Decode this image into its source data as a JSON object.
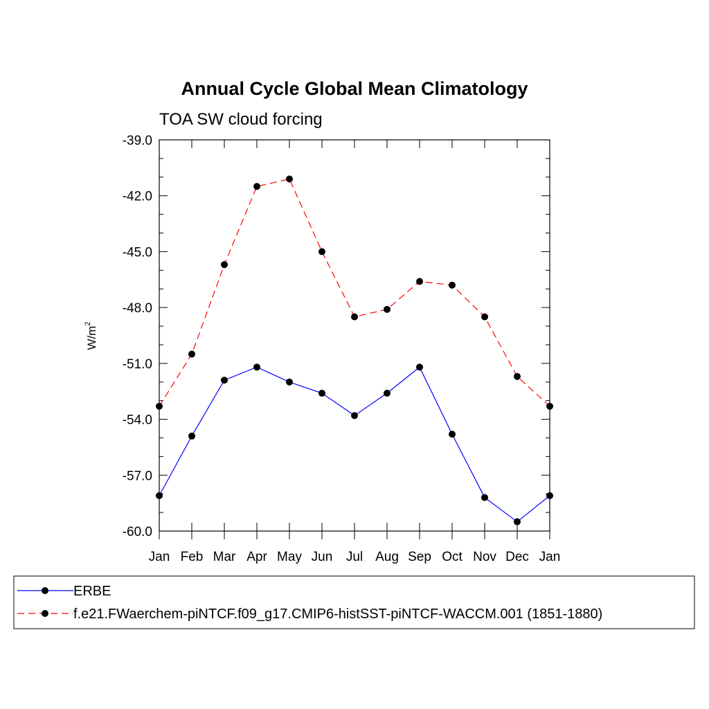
{
  "chart_data": {
    "type": "line",
    "title": "Annual Cycle Global Mean Climatology",
    "subtitle": "TOA SW cloud forcing",
    "ylabel": "W/m",
    "ylabel_sup": "2",
    "xlabel": "",
    "categories": [
      "Jan",
      "Feb",
      "Mar",
      "Apr",
      "May",
      "Jun",
      "Jul",
      "Aug",
      "Sep",
      "Oct",
      "Nov",
      "Dec",
      "Jan"
    ],
    "ylim": [
      -60.0,
      -39.0
    ],
    "yticks": [
      -60.0,
      -57.0,
      -54.0,
      -51.0,
      -48.0,
      -45.0,
      -42.0,
      -39.0
    ],
    "ytick_labels": [
      "-60.0",
      "-57.0",
      "-54.0",
      "-51.0",
      "-48.0",
      "-45.0",
      "-42.0",
      "-39.0"
    ],
    "y_minor_step": 1.0,
    "grid": false,
    "legend_position": "bottom",
    "series": [
      {
        "name": "ERBE",
        "color": "#0000ff",
        "dashed": false,
        "values": [
          -58.1,
          -54.9,
          -51.9,
          -51.2,
          -52.0,
          -52.6,
          -53.8,
          -52.6,
          -51.2,
          -54.8,
          -58.2,
          -59.5,
          -58.1
        ]
      },
      {
        "name": "f.e21.FWaerchem-piNTCF.f09_g17.CMIP6-histSST-piNTCF-WACCM.001 (1851-1880)",
        "color": "#ff0000",
        "dashed": true,
        "values": [
          -53.3,
          -50.5,
          -45.7,
          -41.5,
          -41.1,
          -45.0,
          -48.5,
          -48.1,
          -46.6,
          -46.8,
          -48.5,
          -51.7,
          -53.3
        ]
      }
    ]
  }
}
